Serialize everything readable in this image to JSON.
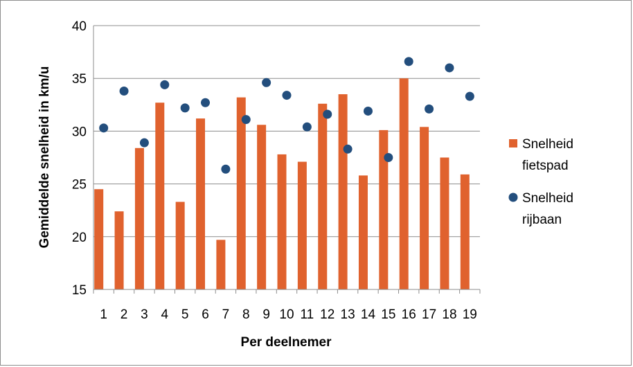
{
  "chart_data": {
    "type": "bar",
    "title": "",
    "xlabel": "Per deelnemer",
    "ylabel": "Gemiddelde snelheid in km/u",
    "categories": [
      "1",
      "2",
      "3",
      "4",
      "5",
      "6",
      "7",
      "8",
      "9",
      "10",
      "11",
      "12",
      "13",
      "14",
      "15",
      "16",
      "17",
      "18",
      "19"
    ],
    "ylim": [
      15,
      40
    ],
    "yticks": [
      "15",
      "20",
      "25",
      "30",
      "35",
      "40"
    ],
    "grid": true,
    "legend_position": "right",
    "series": [
      {
        "name": "Snelheid fietspad",
        "legend_lines": [
          "Snelheid",
          "fietspad"
        ],
        "type": "bar",
        "color": "#e0622e",
        "values": [
          24.5,
          22.4,
          28.4,
          32.7,
          23.3,
          31.2,
          19.7,
          33.2,
          30.6,
          27.8,
          27.1,
          32.6,
          33.5,
          25.8,
          30.1,
          35.0,
          30.4,
          27.5,
          25.9
        ]
      },
      {
        "name": "Snelheid rijbaan",
        "legend_lines": [
          "Snelheid",
          "rijbaan"
        ],
        "type": "scatter",
        "color": "#234e7d",
        "values": [
          30.3,
          33.8,
          28.9,
          34.4,
          32.2,
          32.7,
          26.4,
          31.1,
          34.6,
          33.4,
          30.4,
          31.6,
          28.3,
          31.9,
          27.5,
          36.6,
          32.1,
          36.0,
          33.3
        ]
      }
    ]
  }
}
